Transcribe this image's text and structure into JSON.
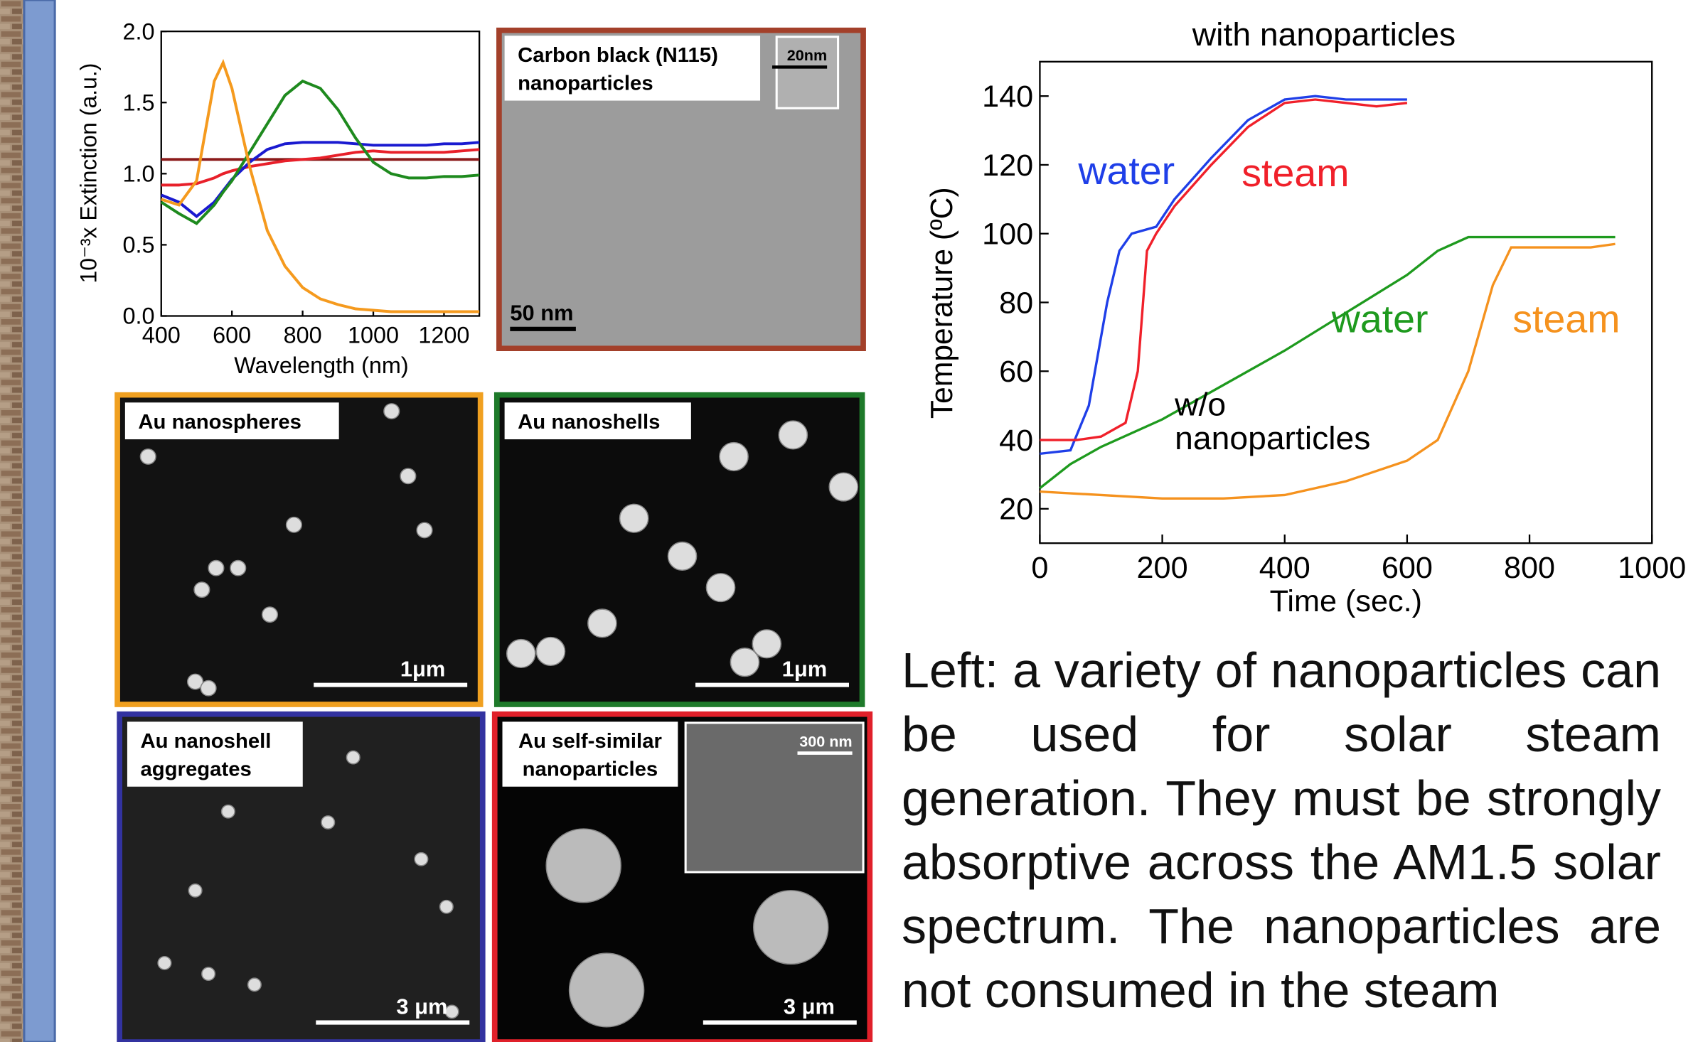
{
  "chart_data": [
    {
      "type": "line",
      "y_label": "10⁻³x Extinction (a.u.)",
      "x_label": "Wavelength (nm)",
      "x": [
        400,
        450,
        500,
        550,
        575,
        600,
        650,
        700,
        750,
        800,
        850,
        900,
        950,
        1000,
        1050,
        1100,
        1150,
        1200,
        1250,
        1300
      ],
      "series": [
        {
          "color": "#8b1a1a",
          "values": [
            1.1,
            1.1,
            1.1,
            1.1,
            1.1,
            1.1,
            1.1,
            1.1,
            1.1,
            1.1,
            1.1,
            1.1,
            1.1,
            1.1,
            1.1,
            1.1,
            1.1,
            1.1,
            1.1,
            1.1
          ]
        },
        {
          "color": "#e8202a",
          "values": [
            0.92,
            0.92,
            0.93,
            0.97,
            1.0,
            1.02,
            1.05,
            1.07,
            1.09,
            1.1,
            1.11,
            1.13,
            1.15,
            1.16,
            1.15,
            1.15,
            1.15,
            1.15,
            1.16,
            1.17
          ]
        },
        {
          "color": "#1a1ad0",
          "values": [
            0.85,
            0.8,
            0.7,
            0.8,
            0.88,
            0.96,
            1.08,
            1.17,
            1.21,
            1.22,
            1.22,
            1.22,
            1.21,
            1.2,
            1.2,
            1.2,
            1.2,
            1.21,
            1.21,
            1.22
          ]
        },
        {
          "color": "#1e8a1e",
          "values": [
            0.8,
            0.72,
            0.65,
            0.78,
            0.87,
            0.95,
            1.15,
            1.35,
            1.55,
            1.65,
            1.6,
            1.45,
            1.25,
            1.08,
            1.0,
            0.97,
            0.97,
            0.98,
            0.98,
            0.99
          ]
        },
        {
          "color": "#f59a1e",
          "values": [
            0.82,
            0.78,
            0.95,
            1.65,
            1.78,
            1.6,
            1.05,
            0.6,
            0.35,
            0.2,
            0.12,
            0.08,
            0.05,
            0.04,
            0.03,
            0.03,
            0.03,
            0.03,
            0.03,
            0.03
          ]
        }
      ],
      "xlim": [
        400,
        1300
      ],
      "xticks": [
        400,
        600,
        800,
        1000,
        1200
      ],
      "ylim": [
        0,
        2
      ],
      "yticks": [
        {
          "value": 0,
          "label": "0.0"
        },
        0.5,
        {
          "value": 1,
          "label": "1.0"
        },
        1.5,
        {
          "value": 2,
          "label": "2.0"
        }
      ]
    },
    {
      "type": "line",
      "title": "with nanoparticles",
      "y_label": "Temperature (ºC)",
      "x_label": "Time (sec.)",
      "annotations": [
        "w/o",
        "nanoparticles"
      ],
      "series": [
        {
          "name": "water",
          "color": "#1f3fe8",
          "x": [
            0,
            50,
            80,
            110,
            130,
            150,
            190,
            220,
            280,
            340,
            400,
            450,
            500,
            550,
            600
          ],
          "values": [
            36,
            37,
            50,
            80,
            95,
            100,
            102,
            110,
            122,
            133,
            139,
            140,
            139,
            139,
            139
          ]
        },
        {
          "name": "steam",
          "color": "#f0202a",
          "x": [
            0,
            60,
            100,
            140,
            160,
            175,
            190,
            220,
            280,
            340,
            400,
            450,
            500,
            550,
            600
          ],
          "values": [
            40,
            40,
            41,
            45,
            60,
            95,
            100,
            108,
            120,
            131,
            138,
            139,
            138,
            137,
            138
          ]
        },
        {
          "name": "water",
          "color": "#1e9a1e",
          "x": [
            0,
            50,
            100,
            200,
            300,
            400,
            500,
            600,
            650,
            700,
            800,
            900,
            940
          ],
          "values": [
            26,
            33,
            38,
            46,
            56,
            66,
            77,
            88,
            95,
            99,
            99,
            99,
            99
          ]
        },
        {
          "name": "steam",
          "color": "#f5921e",
          "x": [
            0,
            100,
            200,
            300,
            400,
            500,
            600,
            650,
            700,
            740,
            770,
            800,
            900,
            940
          ],
          "values": [
            25,
            24,
            23,
            23,
            24,
            28,
            34,
            40,
            60,
            85,
            96,
            96,
            96,
            97
          ]
        }
      ],
      "xlim": [
        0,
        1000
      ],
      "xticks": [
        0,
        200,
        400,
        600,
        800,
        1000
      ],
      "ylim": [
        10,
        150
      ],
      "yticks": [
        20,
        40,
        60,
        80,
        100,
        120,
        140
      ]
    }
  ],
  "panels": [
    {
      "label": [
        "Carbon black (N115)",
        "nanoparticles"
      ],
      "scale": "50 nm",
      "inset": "20nm",
      "border": "#a3402a"
    },
    {
      "label": [
        "Au nanospheres"
      ],
      "scale": "1μm",
      "border": "#f0a020"
    },
    {
      "label": [
        "Au nanoshells"
      ],
      "scale": "1μm",
      "border": "#1e7a2a"
    },
    {
      "label": [
        "Au nanoshell",
        "aggregates"
      ],
      "scale": "3 μm",
      "border": "#3232a0"
    },
    {
      "label": [
        "Au self-similar",
        "nanoparticles"
      ],
      "scale": "3 μm",
      "inset": "300 nm",
      "border": "#e0202a"
    }
  ],
  "text": "Left: a variety of nanoparticles can be used for solar steam generation. They must be strongly absorptive across the AM1.5 solar spectrum. The nanoparticles are not consumed in the steam"
}
